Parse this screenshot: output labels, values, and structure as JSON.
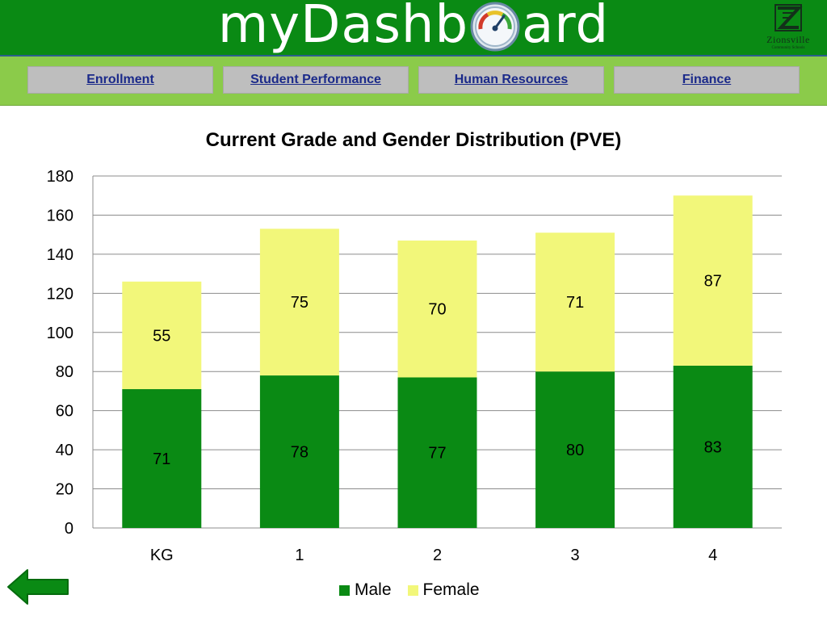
{
  "header": {
    "title_left": "myDashb",
    "title_right": "ard",
    "logo_text": "Zionsville",
    "logo_subtext": "Community Schools"
  },
  "nav": {
    "items": [
      {
        "label": "Enrollment"
      },
      {
        "label": "Student Performance"
      },
      {
        "label": "Human Resources"
      },
      {
        "label": "Finance"
      }
    ]
  },
  "colors": {
    "header_bg": "#0a8a14",
    "nav_bg": "#8bcb4a",
    "male": "#0a8a14",
    "female": "#f2f77a",
    "nav_link": "#1b2a8a"
  },
  "chart_data": {
    "type": "bar",
    "stacked": true,
    "title": "Current Grade and Gender Distribution (PVE)",
    "xlabel": "",
    "ylabel": "",
    "categories": [
      "KG",
      "1",
      "2",
      "3",
      "4"
    ],
    "series": [
      {
        "name": "Male",
        "values": [
          71,
          78,
          77,
          80,
          83
        ],
        "color": "#0a8a14"
      },
      {
        "name": "Female",
        "values": [
          55,
          75,
          70,
          71,
          87
        ],
        "color": "#f2f77a"
      }
    ],
    "ylim": [
      0,
      180
    ],
    "yticks": [
      0,
      20,
      40,
      60,
      80,
      100,
      120,
      140,
      160,
      180
    ],
    "grid": true,
    "legend": "bottom"
  },
  "icons": {
    "back": "back-arrow-icon",
    "gauge": "gauge-icon"
  }
}
